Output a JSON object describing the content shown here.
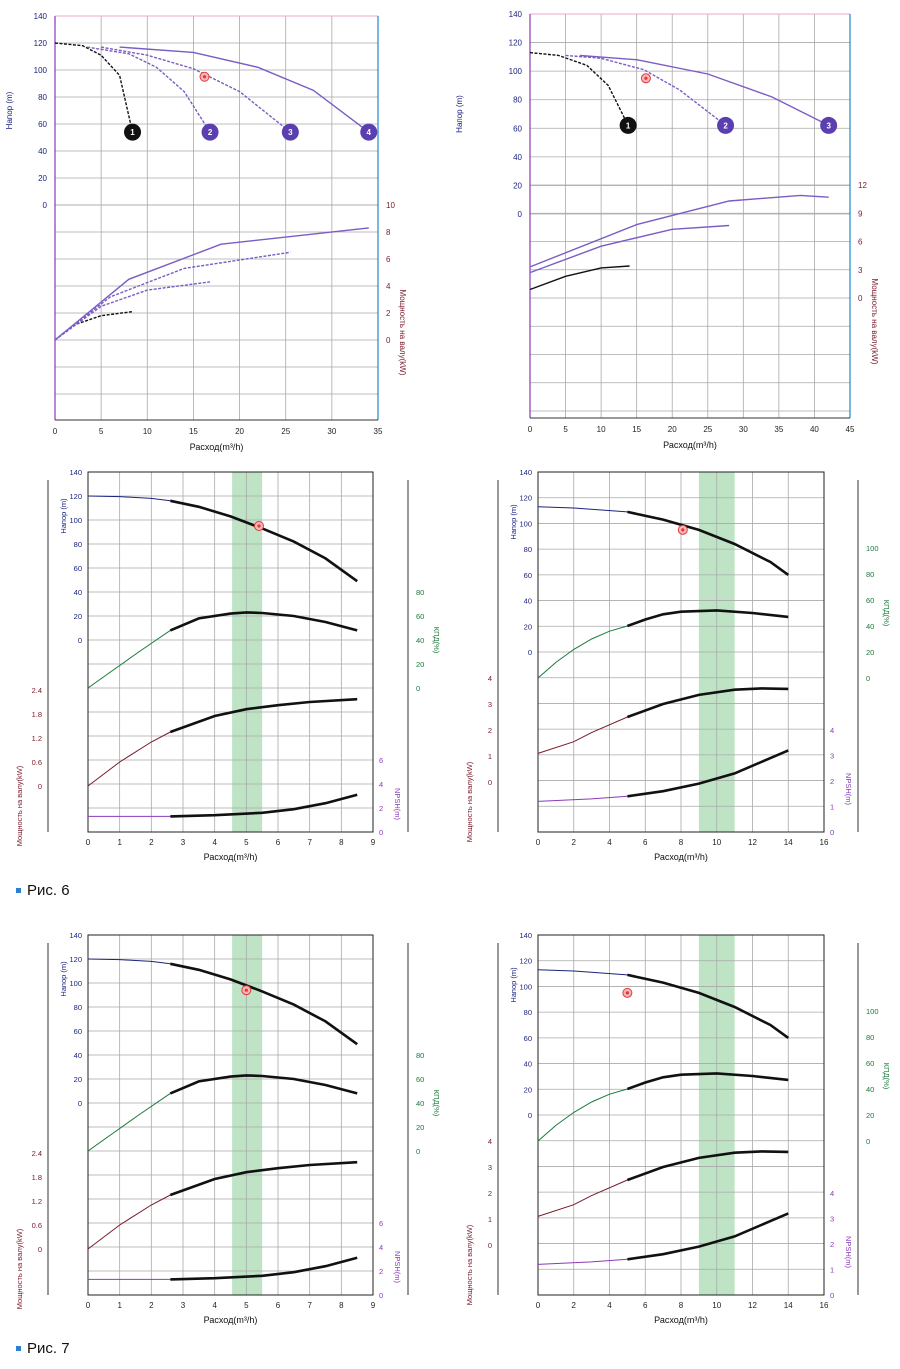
{
  "captions": {
    "fig6": "Рис. 6",
    "fig7": "Рис. 7"
  },
  "colors": {
    "grid": "#a9a9a9",
    "nav": "#1a237e",
    "blue_axis": "#1e88c8",
    "purple": "#7b5cc4",
    "black": "#111111",
    "green": "#1a7a3a",
    "maroon": "#7a1a2a",
    "violet": "#8a3ab9",
    "band": "#a9dbb1",
    "marker": "#e0393e"
  },
  "chart_data": [
    {
      "id": "A",
      "type": "line",
      "xlabel": "Расход(m³/h)",
      "xticks": [
        0,
        5,
        10,
        15,
        20,
        25,
        30,
        35
      ],
      "head": {
        "label": "Напор (m)",
        "ticks": [
          0,
          20,
          40,
          60,
          80,
          100,
          120,
          140
        ]
      },
      "power": {
        "label": "Мощность на валу(kW)",
        "ticks": [
          0,
          2,
          4,
          6,
          8,
          10
        ]
      },
      "duty_point": [
        16.2,
        95
      ],
      "head_curves": [
        {
          "name": "1",
          "color": "black",
          "dashed": true,
          "points": [
            [
              0,
              120
            ],
            [
              3,
              118
            ],
            [
              5,
              111
            ],
            [
              7,
              96
            ],
            [
              8.4,
              54
            ]
          ]
        },
        {
          "name": "2",
          "color": "purple",
          "dashed": true,
          "points": [
            [
              3.5,
              117
            ],
            [
              8,
              112
            ],
            [
              11,
              102
            ],
            [
              14,
              84
            ],
            [
              16.8,
              54
            ]
          ]
        },
        {
          "name": "3",
          "color": "purple",
          "dashed": true,
          "points": [
            [
              5,
              117
            ],
            [
              10,
              111
            ],
            [
              15,
              101
            ],
            [
              20,
              84
            ],
            [
              25.5,
              54
            ]
          ]
        },
        {
          "name": "4",
          "color": "purple",
          "dashed": false,
          "points": [
            [
              7,
              117
            ],
            [
              15,
              113
            ],
            [
              22,
              102
            ],
            [
              28,
              85
            ],
            [
              34,
              54
            ]
          ]
        }
      ],
      "power_curves": [
        {
          "color": "black",
          "dashed": true,
          "points": [
            [
              0,
              0
            ],
            [
              2,
              1.1
            ],
            [
              5,
              1.8
            ],
            [
              8.4,
              2.1
            ]
          ]
        },
        {
          "color": "purple",
          "dashed": true,
          "points": [
            [
              0,
              0
            ],
            [
              5,
              2.5
            ],
            [
              10,
              3.7
            ],
            [
              16.8,
              4.3
            ]
          ]
        },
        {
          "color": "purple",
          "dashed": true,
          "points": [
            [
              0,
              0
            ],
            [
              6,
              3.2
            ],
            [
              14,
              5.3
            ],
            [
              25.5,
              6.5
            ]
          ]
        },
        {
          "color": "purple",
          "dashed": false,
          "points": [
            [
              0,
              0
            ],
            [
              8,
              4.5
            ],
            [
              18,
              7.1
            ],
            [
              34,
              8.3
            ]
          ]
        }
      ]
    },
    {
      "id": "B",
      "type": "line",
      "xlabel": "Расход(m³/h)",
      "xticks": [
        0,
        5,
        10,
        15,
        20,
        25,
        30,
        35,
        40,
        45
      ],
      "head": {
        "label": "Напор (m)",
        "ticks": [
          0,
          20,
          40,
          60,
          80,
          100,
          120,
          140
        ]
      },
      "power": {
        "label": "Мощность на валу(kW)",
        "ticks": [
          0,
          3,
          6,
          9,
          12
        ]
      },
      "duty_point": [
        16.3,
        95
      ],
      "head_curves": [
        {
          "name": "1",
          "color": "black",
          "dashed": true,
          "points": [
            [
              0,
              113
            ],
            [
              4,
              111
            ],
            [
              8,
              104
            ],
            [
              11,
              90
            ],
            [
              13.8,
              62
            ]
          ]
        },
        {
          "name": "2",
          "color": "purple",
          "dashed": true,
          "points": [
            [
              5,
              111
            ],
            [
              10,
              109
            ],
            [
              16,
              101
            ],
            [
              21,
              87
            ],
            [
              27.5,
              62
            ]
          ]
        },
        {
          "name": "3",
          "color": "purple",
          "dashed": false,
          "points": [
            [
              7,
              111
            ],
            [
              15,
              108
            ],
            [
              25,
              98
            ],
            [
              34,
              82
            ],
            [
              42,
              62
            ]
          ]
        }
      ],
      "power_curves": [
        {
          "color": "black",
          "dashed": false,
          "points": [
            [
              0,
              0.9
            ],
            [
              5,
              2.3
            ],
            [
              10,
              3.2
            ],
            [
              14,
              3.4
            ]
          ]
        },
        {
          "color": "purple",
          "dashed": false,
          "points": [
            [
              0,
              2.7
            ],
            [
              10,
              5.5
            ],
            [
              20,
              7.3
            ],
            [
              28,
              7.7
            ]
          ]
        },
        {
          "color": "purple",
          "dashed": false,
          "points": [
            [
              0,
              3.3
            ],
            [
              15,
              7.8
            ],
            [
              28,
              10.3
            ],
            [
              38,
              10.9
            ],
            [
              42,
              10.7
            ]
          ]
        }
      ]
    },
    {
      "id": "C",
      "type": "line",
      "xlabel": "Расход(m³/h)",
      "xticks": [
        0,
        1,
        2,
        3,
        4,
        5,
        6,
        7,
        8,
        9
      ],
      "head": {
        "label": "Напор (m)",
        "ticks": [
          0,
          20,
          40,
          60,
          80,
          100,
          120,
          140
        ]
      },
      "eff": {
        "label": "КПД(%)",
        "ticks": [
          0,
          20,
          40,
          60,
          80
        ]
      },
      "power": {
        "label": "Мощность на валу(kW)",
        "ticks": [
          0,
          0.6,
          1.2,
          1.8,
          2.4
        ]
      },
      "npsh": {
        "label": "NPSH(m)",
        "ticks": [
          0,
          2,
          4,
          6
        ]
      },
      "band": [
        4.55,
        5.5
      ],
      "duty_point": [
        5.4,
        95
      ],
      "head_curve": [
        [
          0,
          120
        ],
        [
          1,
          119.5
        ],
        [
          2,
          118
        ],
        [
          2.6,
          116
        ],
        [
          3.5,
          111
        ],
        [
          4.5,
          103
        ],
        [
          5.5,
          93
        ],
        [
          6.5,
          82
        ],
        [
          7.5,
          68
        ],
        [
          8.5,
          49
        ]
      ],
      "eff_curve": [
        [
          0,
          0
        ],
        [
          0.8,
          15
        ],
        [
          1.6,
          30
        ],
        [
          2.6,
          48
        ],
        [
          3.5,
          58
        ],
        [
          4.5,
          62
        ],
        [
          5,
          63
        ],
        [
          5.5,
          62.5
        ],
        [
          6.5,
          60
        ],
        [
          7.5,
          55
        ],
        [
          8.5,
          48
        ]
      ],
      "power_curve": [
        [
          0,
          0
        ],
        [
          1,
          0.6
        ],
        [
          2,
          1.1
        ],
        [
          2.6,
          1.35
        ],
        [
          4,
          1.75
        ],
        [
          5,
          1.92
        ],
        [
          6,
          2.02
        ],
        [
          7,
          2.1
        ],
        [
          8.5,
          2.17
        ]
      ],
      "npsh_curve": [
        [
          0,
          1.3
        ],
        [
          2.6,
          1.3
        ],
        [
          4,
          1.4
        ],
        [
          5.5,
          1.6
        ],
        [
          6.5,
          1.9
        ],
        [
          7.5,
          2.4
        ],
        [
          8.5,
          3.1
        ]
      ],
      "thin_until": 2.6
    },
    {
      "id": "D",
      "type": "line",
      "xlabel": "Расход(m³/h)",
      "xticks": [
        0,
        2,
        4,
        6,
        8,
        10,
        12,
        14,
        16
      ],
      "head": {
        "label": "Напор (m)",
        "ticks": [
          0,
          20,
          40,
          60,
          80,
          100,
          120,
          140
        ]
      },
      "eff": {
        "label": "КПД(%)",
        "ticks": [
          0,
          20,
          40,
          60,
          80,
          100
        ]
      },
      "power": {
        "label": "Мощность на валу(kW)",
        "ticks": [
          0,
          1,
          2,
          3,
          4
        ]
      },
      "npsh": {
        "label": "NPSH(m)",
        "ticks": [
          0,
          1,
          2,
          3,
          4
        ]
      },
      "band": [
        9,
        11
      ],
      "duty_point": [
        8.1,
        95
      ],
      "head_curve": [
        [
          0,
          113
        ],
        [
          2,
          112
        ],
        [
          5,
          109
        ],
        [
          7,
          103
        ],
        [
          9,
          95
        ],
        [
          11,
          84
        ],
        [
          13,
          70
        ],
        [
          14,
          60
        ]
      ],
      "eff_curve": [
        [
          0,
          0
        ],
        [
          1,
          12
        ],
        [
          2,
          22
        ],
        [
          3,
          30
        ],
        [
          4,
          36
        ],
        [
          5,
          40
        ],
        [
          6,
          45
        ],
        [
          7,
          49
        ],
        [
          8,
          51
        ],
        [
          10,
          52
        ],
        [
          12,
          50
        ],
        [
          14,
          47
        ]
      ],
      "power_curve": [
        [
          0,
          1.1
        ],
        [
          2,
          1.55
        ],
        [
          3,
          1.9
        ],
        [
          5,
          2.5
        ],
        [
          7,
          3.0
        ],
        [
          9,
          3.35
        ],
        [
          11,
          3.55
        ],
        [
          12.5,
          3.6
        ],
        [
          14,
          3.58
        ]
      ],
      "npsh_curve": [
        [
          0,
          1.2
        ],
        [
          3,
          1.3
        ],
        [
          5,
          1.4
        ],
        [
          7,
          1.6
        ],
        [
          9,
          1.9
        ],
        [
          11,
          2.3
        ],
        [
          13,
          2.9
        ],
        [
          14,
          3.2
        ]
      ],
      "thin_until": 5
    },
    {
      "id": "E",
      "type": "line",
      "xlabel": "Расход(m³/h)",
      "xticks": [
        0,
        1,
        2,
        3,
        4,
        5,
        6,
        7,
        8,
        9
      ],
      "head": {
        "label": "Напор (m)",
        "ticks": [
          0,
          20,
          40,
          60,
          80,
          100,
          120,
          140
        ]
      },
      "eff": {
        "label": "КПД(%)",
        "ticks": [
          0,
          20,
          40,
          60,
          80
        ]
      },
      "power": {
        "label": "Мощность на валу(kW)",
        "ticks": [
          0,
          0.6,
          1.2,
          1.8,
          2.4
        ]
      },
      "npsh": {
        "label": "NPSH(m)",
        "ticks": [
          0,
          2,
          4,
          6
        ]
      },
      "band": [
        4.55,
        5.5
      ],
      "duty_point": [
        5.0,
        94
      ],
      "head_curve": [
        [
          0,
          120
        ],
        [
          1,
          119.5
        ],
        [
          2,
          118
        ],
        [
          2.6,
          116
        ],
        [
          3.5,
          111
        ],
        [
          4.5,
          103
        ],
        [
          5.5,
          93
        ],
        [
          6.5,
          82
        ],
        [
          7.5,
          68
        ],
        [
          8.5,
          49
        ]
      ],
      "eff_curve": [
        [
          0,
          0
        ],
        [
          0.8,
          15
        ],
        [
          1.6,
          30
        ],
        [
          2.6,
          48
        ],
        [
          3.5,
          58
        ],
        [
          4.5,
          62
        ],
        [
          5,
          63
        ],
        [
          5.5,
          62.5
        ],
        [
          6.5,
          60
        ],
        [
          7.5,
          55
        ],
        [
          8.5,
          48
        ]
      ],
      "power_curve": [
        [
          0,
          0
        ],
        [
          1,
          0.6
        ],
        [
          2,
          1.1
        ],
        [
          2.6,
          1.35
        ],
        [
          4,
          1.75
        ],
        [
          5,
          1.92
        ],
        [
          6,
          2.02
        ],
        [
          7,
          2.1
        ],
        [
          8.5,
          2.17
        ]
      ],
      "npsh_curve": [
        [
          0,
          1.3
        ],
        [
          2.6,
          1.3
        ],
        [
          4,
          1.4
        ],
        [
          5.5,
          1.6
        ],
        [
          6.5,
          1.9
        ],
        [
          7.5,
          2.4
        ],
        [
          8.5,
          3.1
        ]
      ],
      "thin_until": 2.6
    },
    {
      "id": "F",
      "type": "line",
      "xlabel": "Расход(m³/h)",
      "xticks": [
        0,
        2,
        4,
        6,
        8,
        10,
        12,
        14,
        16
      ],
      "head": {
        "label": "Напор (m)",
        "ticks": [
          0,
          20,
          40,
          60,
          80,
          100,
          120,
          140
        ]
      },
      "eff": {
        "label": "КПД(%)",
        "ticks": [
          0,
          20,
          40,
          60,
          80,
          100
        ]
      },
      "power": {
        "label": "Мощность на валу(kW)",
        "ticks": [
          0,
          1,
          2,
          3,
          4
        ]
      },
      "npsh": {
        "label": "NPSH(m)",
        "ticks": [
          0,
          1,
          2,
          3,
          4
        ]
      },
      "band": [
        9,
        11
      ],
      "duty_point": [
        5.0,
        95
      ],
      "head_curve": [
        [
          0,
          113
        ],
        [
          2,
          112
        ],
        [
          5,
          109
        ],
        [
          7,
          103
        ],
        [
          9,
          95
        ],
        [
          11,
          84
        ],
        [
          13,
          70
        ],
        [
          14,
          60
        ]
      ],
      "eff_curve": [
        [
          0,
          0
        ],
        [
          1,
          12
        ],
        [
          2,
          22
        ],
        [
          3,
          30
        ],
        [
          4,
          36
        ],
        [
          5,
          40
        ],
        [
          6,
          45
        ],
        [
          7,
          49
        ],
        [
          8,
          51
        ],
        [
          10,
          52
        ],
        [
          12,
          50
        ],
        [
          14,
          47
        ]
      ],
      "power_curve": [
        [
          0,
          1.1
        ],
        [
          2,
          1.55
        ],
        [
          3,
          1.9
        ],
        [
          5,
          2.5
        ],
        [
          7,
          3.0
        ],
        [
          9,
          3.35
        ],
        [
          11,
          3.55
        ],
        [
          12.5,
          3.6
        ],
        [
          14,
          3.58
        ]
      ],
      "npsh_curve": [
        [
          0,
          1.2
        ],
        [
          3,
          1.3
        ],
        [
          5,
          1.4
        ],
        [
          7,
          1.6
        ],
        [
          9,
          1.9
        ],
        [
          11,
          2.3
        ],
        [
          13,
          2.9
        ],
        [
          14,
          3.2
        ]
      ],
      "thin_until": 5
    }
  ]
}
